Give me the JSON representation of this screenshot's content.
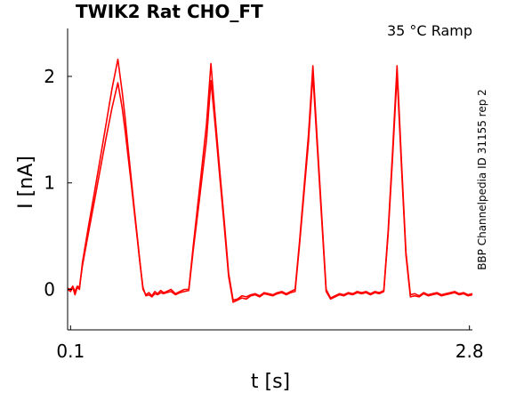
{
  "chart_data": {
    "type": "line",
    "title": "TWIK2  Rat  CHO_FT",
    "annotation": "35 °C  Ramp",
    "side_label": "BBP Channelpedia ID 31155 rep 2",
    "xlabel": "t [s]",
    "ylabel": "I [nA]",
    "x_ticks": [
      "0.1",
      "2.8"
    ],
    "y_ticks": [
      "0",
      "1",
      "2"
    ],
    "xlim": [
      0.08,
      2.82
    ],
    "ylim": [
      -0.38,
      2.45
    ],
    "grid": false,
    "color": "#ff0000",
    "series": [
      {
        "x": [
          0.08,
          0.1,
          0.115,
          0.13,
          0.145,
          0.16,
          0.18,
          0.22,
          0.26,
          0.3,
          0.34,
          0.38,
          0.42,
          0.45,
          0.47,
          0.49,
          0.51,
          0.53,
          0.55,
          0.57,
          0.59,
          0.61,
          0.63,
          0.65,
          0.67,
          0.69,
          0.71,
          0.73,
          0.75,
          0.78,
          0.81,
          0.84,
          0.87,
          0.9,
          0.93,
          0.96,
          0.99,
          1.02,
          1.05,
          1.08,
          1.11,
          1.14,
          1.17,
          1.2,
          1.23,
          1.26,
          1.29,
          1.32,
          1.35,
          1.38,
          1.41,
          1.44,
          1.47,
          1.5,
          1.53,
          1.56,
          1.59,
          1.62,
          1.65,
          1.68,
          1.71,
          1.74,
          1.77,
          1.8,
          1.83,
          1.86,
          1.89,
          1.92,
          1.95,
          1.98,
          2.01,
          2.04,
          2.07,
          2.1,
          2.13,
          2.16,
          2.19,
          2.22,
          2.25,
          2.28,
          2.31,
          2.34,
          2.37,
          2.4,
          2.43,
          2.46,
          2.49,
          2.52,
          2.55,
          2.58,
          2.61,
          2.64,
          2.67,
          2.7,
          2.73,
          2.76,
          2.79,
          2.82
        ],
        "y": [
          0.0,
          -0.02,
          0.02,
          -0.05,
          0.02,
          0.0,
          0.25,
          0.58,
          0.9,
          1.22,
          1.55,
          1.88,
          2.16,
          1.85,
          1.6,
          1.32,
          1.05,
          0.78,
          0.52,
          0.25,
          0.0,
          -0.05,
          -0.03,
          -0.06,
          -0.02,
          -0.04,
          -0.01,
          -0.03,
          -0.02,
          0.0,
          -0.04,
          -0.02,
          0.0,
          0.0,
          0.4,
          0.78,
          1.16,
          1.55,
          2.12,
          1.6,
          1.12,
          0.65,
          0.15,
          -0.1,
          -0.09,
          -0.06,
          -0.07,
          -0.05,
          -0.04,
          -0.06,
          -0.03,
          -0.04,
          -0.05,
          -0.03,
          -0.02,
          -0.04,
          -0.02,
          0.0,
          0.45,
          0.95,
          1.45,
          2.1,
          1.4,
          0.7,
          0.0,
          -0.08,
          -0.06,
          -0.04,
          -0.05,
          -0.03,
          -0.04,
          -0.02,
          -0.03,
          -0.02,
          -0.04,
          -0.02,
          -0.03,
          -0.01,
          0.55,
          1.3,
          2.1,
          1.2,
          0.35,
          -0.05,
          -0.04,
          -0.06,
          -0.03,
          -0.05,
          -0.04,
          -0.03,
          -0.05,
          -0.04,
          -0.03,
          -0.02,
          -0.04,
          -0.03,
          -0.05,
          -0.04
        ]
      },
      {
        "x": [
          0.08,
          0.1,
          0.115,
          0.13,
          0.145,
          0.16,
          0.18,
          0.22,
          0.26,
          0.3,
          0.34,
          0.38,
          0.42,
          0.45,
          0.47,
          0.49,
          0.51,
          0.53,
          0.55,
          0.57,
          0.59,
          0.61,
          0.63,
          0.65,
          0.67,
          0.69,
          0.71,
          0.73,
          0.75,
          0.78,
          0.81,
          0.84,
          0.87,
          0.9,
          0.93,
          0.96,
          0.99,
          1.02,
          1.05,
          1.08,
          1.11,
          1.14,
          1.17,
          1.2,
          1.23,
          1.26,
          1.29,
          1.32,
          1.35,
          1.38,
          1.41,
          1.44,
          1.47,
          1.5,
          1.53,
          1.56,
          1.59,
          1.62,
          1.65,
          1.68,
          1.71,
          1.74,
          1.77,
          1.8,
          1.83,
          1.86,
          1.89,
          1.92,
          1.95,
          1.98,
          2.01,
          2.04,
          2.07,
          2.1,
          2.13,
          2.16,
          2.19,
          2.22,
          2.25,
          2.28,
          2.31,
          2.34,
          2.37,
          2.4,
          2.43,
          2.46,
          2.49,
          2.52,
          2.55,
          2.58,
          2.61,
          2.64,
          2.67,
          2.7,
          2.73,
          2.76,
          2.79,
          2.82
        ],
        "y": [
          0.01,
          0.0,
          0.03,
          -0.02,
          0.03,
          0.02,
          0.22,
          0.52,
          0.82,
          1.12,
          1.42,
          1.7,
          1.94,
          1.7,
          1.48,
          1.24,
          1.0,
          0.75,
          0.5,
          0.24,
          0.02,
          -0.06,
          -0.05,
          -0.07,
          -0.04,
          -0.05,
          -0.03,
          -0.04,
          -0.03,
          -0.02,
          -0.05,
          -0.03,
          -0.02,
          -0.01,
          0.36,
          0.7,
          1.05,
          1.4,
          1.96,
          1.52,
          1.06,
          0.6,
          0.12,
          -0.12,
          -0.1,
          -0.08,
          -0.09,
          -0.06,
          -0.05,
          -0.07,
          -0.04,
          -0.05,
          -0.06,
          -0.04,
          -0.03,
          -0.05,
          -0.03,
          -0.02,
          0.42,
          0.9,
          1.38,
          2.02,
          1.34,
          0.66,
          -0.02,
          -0.09,
          -0.07,
          -0.05,
          -0.06,
          -0.04,
          -0.05,
          -0.03,
          -0.04,
          -0.03,
          -0.05,
          -0.03,
          -0.04,
          -0.02,
          0.52,
          1.24,
          2.02,
          1.15,
          0.32,
          -0.07,
          -0.06,
          -0.07,
          -0.04,
          -0.06,
          -0.05,
          -0.04,
          -0.06,
          -0.05,
          -0.04,
          -0.03,
          -0.05,
          -0.04,
          -0.06,
          -0.05
        ]
      }
    ]
  }
}
